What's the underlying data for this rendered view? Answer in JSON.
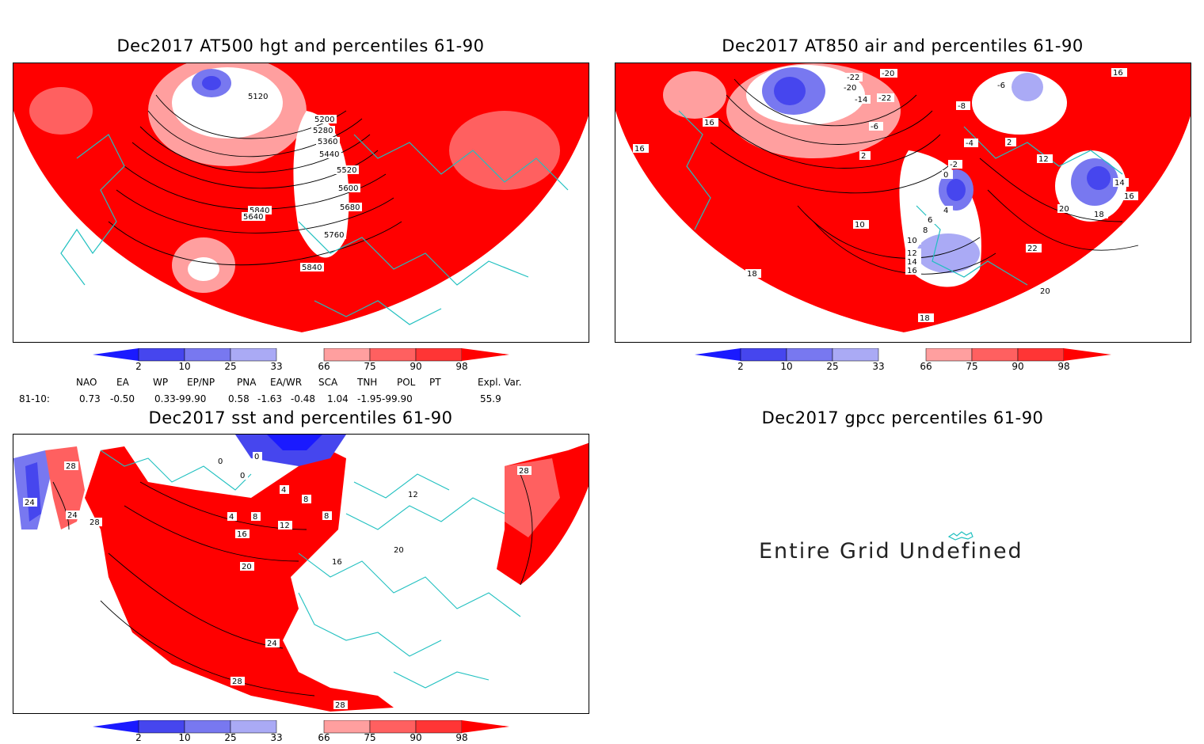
{
  "panels": {
    "hgt": {
      "title": "Dec2017 AT500 hgt and percentiles 61-90",
      "contour_labels": [
        "5120",
        "5200",
        "5280",
        "5360",
        "5440",
        "5520",
        "5600",
        "5680",
        "5760",
        "5840",
        "5840",
        "5640"
      ]
    },
    "air": {
      "title": "Dec2017 AT850 air and percentiles 61-90",
      "contour_labels": [
        "-22",
        "-20",
        "-20",
        "-14",
        "-22",
        "-6",
        "-8",
        "-6",
        "-4",
        "-2",
        "0",
        "2",
        "2",
        "4",
        "6",
        "8",
        "10",
        "10",
        "12",
        "12",
        "14",
        "14",
        "16",
        "16",
        "16",
        "16",
        "16",
        "18",
        "18",
        "18",
        "20",
        "20",
        "22"
      ]
    },
    "sst": {
      "title": "Dec2017 sst and percentiles 61-90",
      "contour_labels": [
        "0",
        "0",
        "0",
        "4",
        "4",
        "8",
        "8",
        "8",
        "12",
        "12",
        "16",
        "16",
        "20",
        "20",
        "24",
        "24",
        "28",
        "28",
        "28",
        "28",
        "28",
        "24"
      ]
    },
    "gpcc": {
      "title": "Dec2017 gpcc percentiles 61-90",
      "message": "Entire Grid Undefined"
    }
  },
  "colorbar": {
    "labels": [
      "2",
      "10",
      "25",
      "33",
      "66",
      "75",
      "90",
      "98"
    ],
    "colors": {
      "deep_blue": "#1a1aff",
      "blue": "#4646ee",
      "mid_blue": "#7878f0",
      "light_blue": "#aaaaf5",
      "white": "#ffffff",
      "light_red": "#ff9f9f",
      "mid_red": "#ff6060",
      "red": "#ff3535",
      "deep_red": "#ff0000"
    }
  },
  "indices": {
    "names": [
      "NAO",
      "EA",
      "WP",
      "EP/NP",
      "PNA",
      "EA/WR",
      "SCA",
      "TNH",
      "POL",
      "PT",
      "Expl. Var."
    ],
    "row_label": "81-10:",
    "values": [
      "0.73",
      "-0.50",
      "0.33-99.90",
      "0.58",
      "-1.63",
      "-0.48",
      "1.04",
      "-1.95-99.90",
      "55.9"
    ]
  },
  "map_colors": {
    "red": "#ff0000",
    "coast": "#20c0c0",
    "contour": "#000000"
  }
}
